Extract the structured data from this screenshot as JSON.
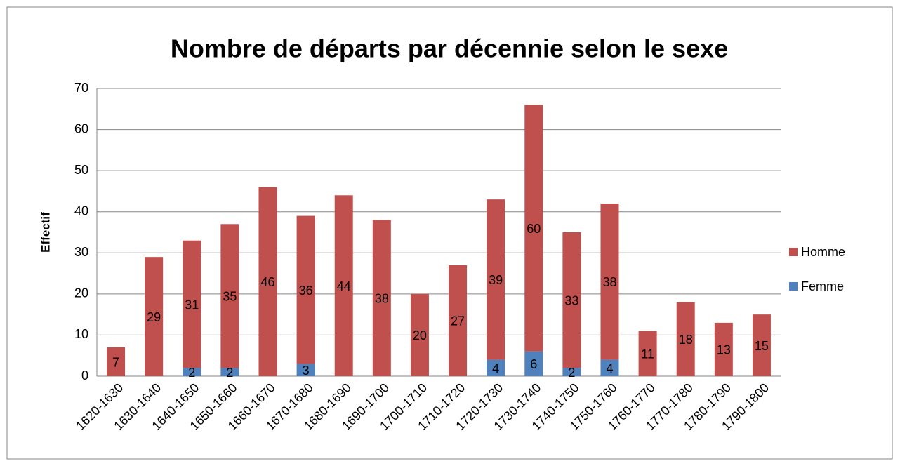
{
  "chart_data": {
    "type": "bar",
    "stacked": true,
    "title": "Nombre de départs par décennie selon le sexe",
    "y_label": "Effectif",
    "categories": [
      "1620-1630",
      "1630-1640",
      "1640-1650",
      "1650-1660",
      "1660-1670",
      "1670-1680",
      "1680-1690",
      "1690-1700",
      "1700-1710",
      "1710-1720",
      "1720-1730",
      "1730-1740",
      "1740-1750",
      "1750-1760",
      "1760-1770",
      "1770-1780",
      "1780-1790",
      "1790-1800"
    ],
    "series": [
      {
        "name": "Femme",
        "color": "#4f81bd",
        "values": [
          null,
          null,
          2,
          2,
          null,
          3,
          null,
          null,
          null,
          null,
          4,
          6,
          2,
          4,
          null,
          null,
          null,
          null
        ]
      },
      {
        "name": "Homme",
        "color": "#c0504d",
        "values": [
          7,
          29,
          31,
          35,
          46,
          36,
          44,
          38,
          20,
          27,
          39,
          60,
          33,
          38,
          11,
          18,
          13,
          15
        ]
      }
    ],
    "ylim": [
      0,
      70
    ],
    "yticks": [
      0,
      10,
      20,
      30,
      40,
      50,
      60,
      70
    ],
    "grid": true,
    "legend": "right"
  }
}
